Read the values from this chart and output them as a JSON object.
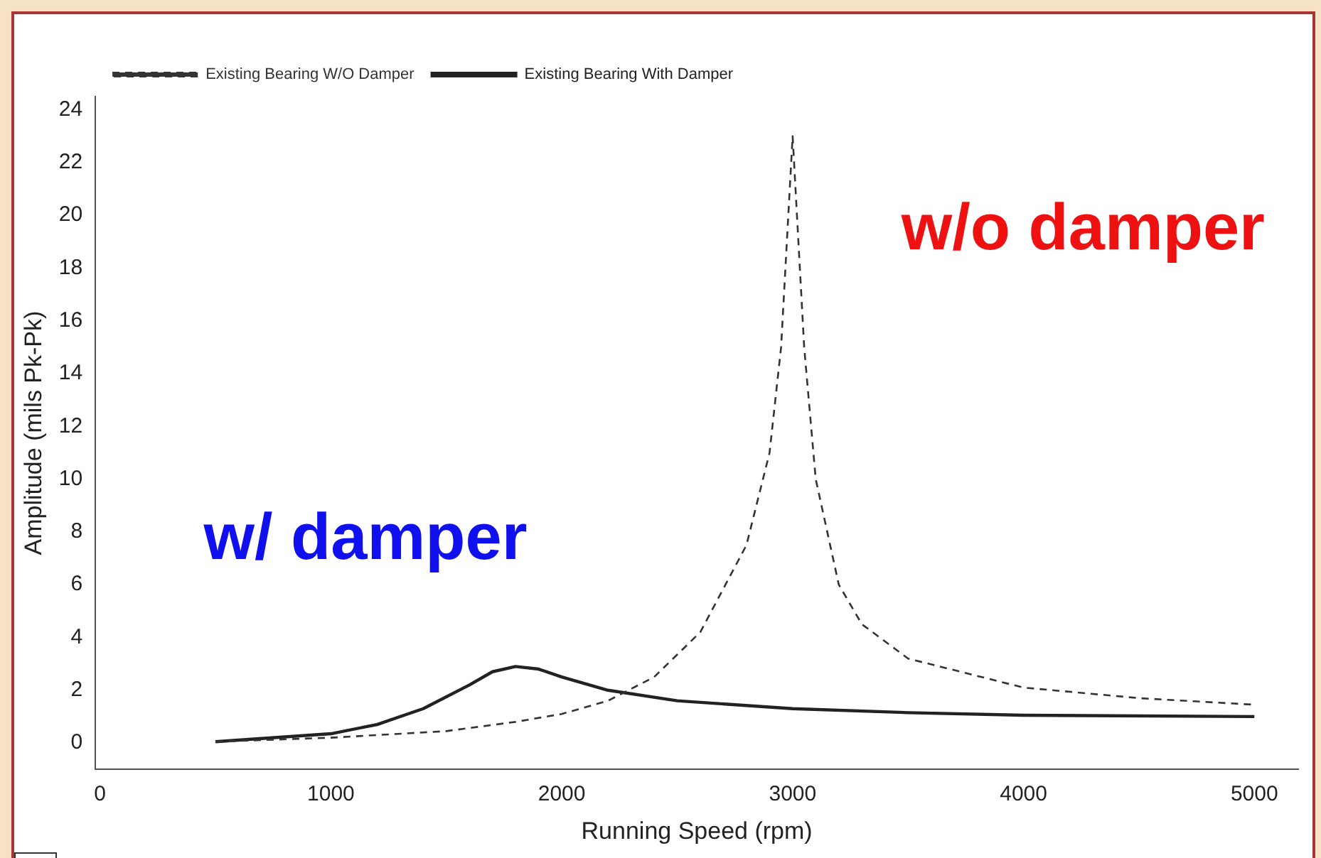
{
  "chart_data": {
    "type": "line",
    "xlabel": "Running Speed (rpm)",
    "ylabel": "Amplitude (mils Pk-Pk)",
    "xlim": [
      -20,
      5190
    ],
    "ylim": [
      -1,
      24.5
    ],
    "xticks": [
      0,
      1000,
      2000,
      3000,
      4000,
      5000
    ],
    "yticks": [
      0,
      2,
      4,
      6,
      8,
      10,
      12,
      14,
      16,
      18,
      20,
      22,
      24
    ],
    "grid": false,
    "legend": "top left",
    "marker": "none",
    "annotations": [
      "w/ damper",
      "w/o damper"
    ],
    "series": [
      {
        "name": "Existing Bearing W/O Damper",
        "color": "#333333",
        "line_style": "dashed",
        "x": [
          500,
          1000,
          1500,
          1800,
          2000,
          2200,
          2400,
          2600,
          2800,
          2900,
          2950,
          3000,
          3050,
          3100,
          3200,
          3300,
          3500,
          4000,
          4500,
          5000
        ],
        "values": [
          0.05,
          0.2,
          0.45,
          0.8,
          1.1,
          1.6,
          2.5,
          4.2,
          7.5,
          11,
          15,
          23,
          15,
          10,
          6,
          4.5,
          3.2,
          2.1,
          1.7,
          1.45
        ]
      },
      {
        "name": "Existing Bearing With Damper",
        "color": "#222222",
        "line_style": "solid",
        "x": [
          500,
          1000,
          1200,
          1400,
          1600,
          1700,
          1800,
          1900,
          2000,
          2200,
          2500,
          3000,
          3500,
          4000,
          5000
        ],
        "values": [
          0.05,
          0.35,
          0.7,
          1.3,
          2.2,
          2.7,
          2.9,
          2.8,
          2.5,
          2.0,
          1.6,
          1.3,
          1.15,
          1.05,
          1.0
        ]
      }
    ]
  }
}
